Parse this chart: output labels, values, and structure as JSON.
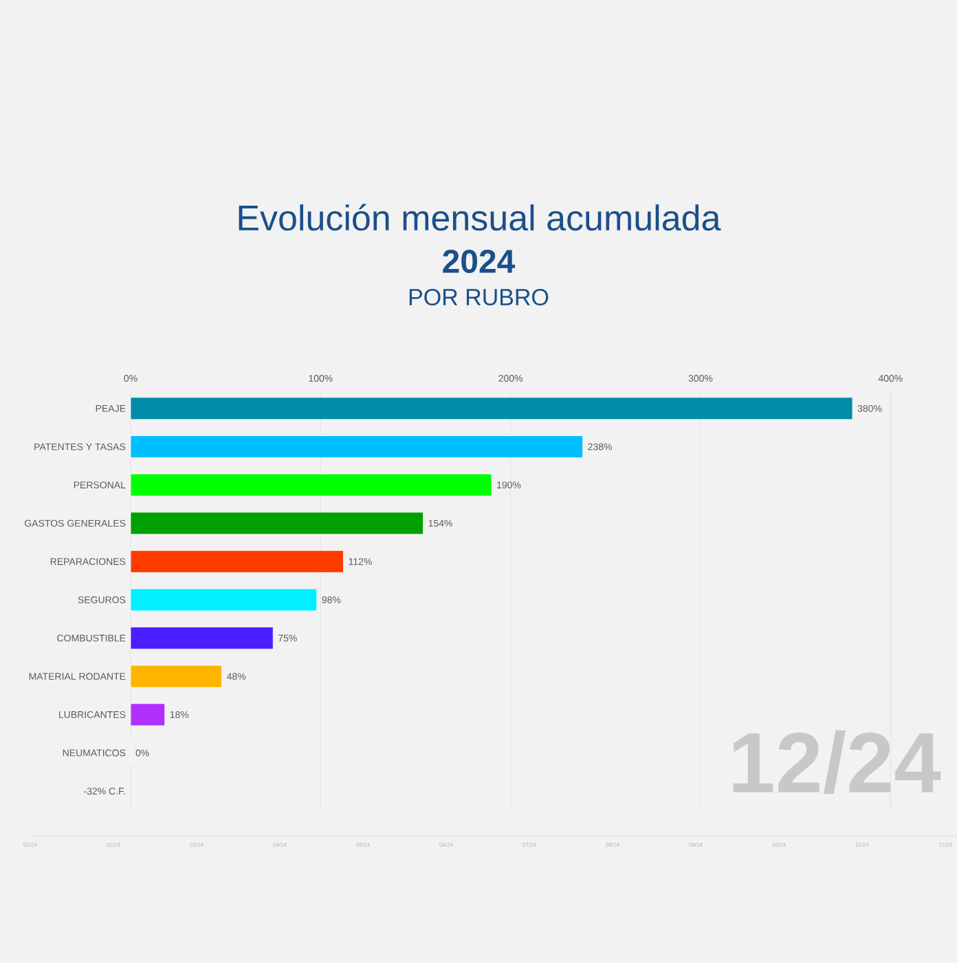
{
  "chart_data": {
    "type": "bar",
    "orientation": "horizontal",
    "title": "Evolución mensual acumulada",
    "subtitle": "2024",
    "annotations": [
      "POR RUBRO",
      "12/24",
      "01/24",
      "02/24",
      "03/24",
      "04/24",
      "05/24",
      "06/24",
      "07/24",
      "08/24",
      "09/24",
      "10/24",
      "11/24",
      "12/24"
    ],
    "categories": [
      "PEAJE",
      "PATENTES Y TASAS",
      "PERSONAL",
      "GASTOS GENERALES",
      "REPARACIONES",
      "SEGUROS",
      "COMBUSTIBLE",
      "MATERIAL RODANTE",
      "LUBRICANTES",
      "NEUMATICOS",
      "-32% C.F."
    ],
    "values": [
      380,
      238,
      190,
      154,
      112,
      98,
      75,
      48,
      18,
      0,
      null
    ],
    "value_labels": [
      "380%",
      "238%",
      "190%",
      "154%",
      "112%",
      "98%",
      "75%",
      "48%",
      "18%",
      "0%",
      null
    ],
    "colors": [
      "#008ca8",
      "#00bfff",
      "#00ff00",
      "#00a000",
      "#ff3c00",
      "#00f0ff",
      "#4b1eff",
      "#ffb400",
      "#b030ff",
      "#888888",
      "#888888"
    ],
    "xlim": [
      0,
      435
    ],
    "xticks": [
      {
        "value": 0,
        "label": "0%"
      },
      {
        "value": 100,
        "label": "100%"
      },
      {
        "value": 200,
        "label": "200%"
      },
      {
        "value": 300,
        "label": "300%"
      },
      {
        "value": 400,
        "label": "400%"
      }
    ],
    "grid": "x"
  }
}
